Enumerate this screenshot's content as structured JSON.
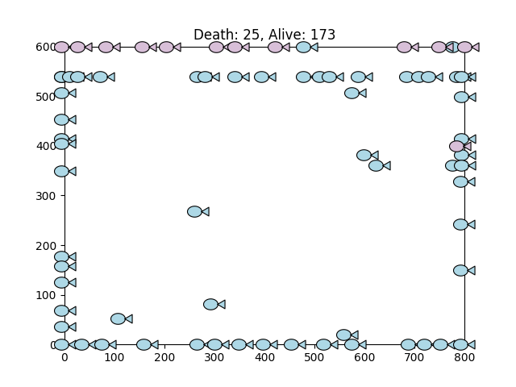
{
  "chart_data": {
    "type": "scatter",
    "title": "Death: 25, Alive: 173",
    "xlim": [
      0,
      800
    ],
    "ylim": [
      0,
      600
    ],
    "xticks": [
      0,
      100,
      200,
      300,
      400,
      500,
      600,
      700,
      800
    ],
    "yticks": [
      0,
      100,
      200,
      300,
      400,
      500,
      600
    ],
    "marker": "fish",
    "series": [
      {
        "color": "#add8e6",
        "x": [
          484,
          782,
          0,
          0,
          16,
          32,
          77,
          271,
          287,
          347,
          400,
          484,
          516,
          535,
          594,
          690,
          715,
          734,
          790,
          800,
          0,
          581,
          800,
          0,
          0,
          800,
          0,
          605,
          800,
          782,
          800,
          629,
          0,
          798,
          266,
          798,
          798,
          0,
          0,
          0,
          298,
          0,
          113,
          0,
          565,
          0,
          40,
          81,
          165,
          271,
          306,
          355,
          403,
          460,
          524,
          581,
          694,
          726,
          758,
          798
        ],
        "y": [
          600,
          600,
          540,
          540,
          540,
          540,
          540,
          540,
          540,
          540,
          540,
          540,
          540,
          540,
          540,
          540,
          540,
          540,
          540,
          540,
          507,
          507,
          499,
          453,
          415,
          415,
          405,
          382,
          382,
          361,
          361,
          361,
          350,
          328,
          268,
          242,
          150,
          177,
          158,
          125,
          81,
          68,
          52,
          36,
          20,
          0,
          0,
          0,
          0,
          0,
          0,
          0,
          0,
          0,
          0,
          0,
          0,
          0,
          0,
          0
        ]
      },
      {
        "color": "#d8bfd8",
        "x": [
          0,
          32,
          89,
          161,
          210,
          310,
          347,
          427,
          686,
          755,
          806,
          790
        ],
        "y": [
          600,
          600,
          600,
          600,
          600,
          600,
          600,
          600,
          600,
          600,
          600,
          400
        ]
      }
    ]
  }
}
